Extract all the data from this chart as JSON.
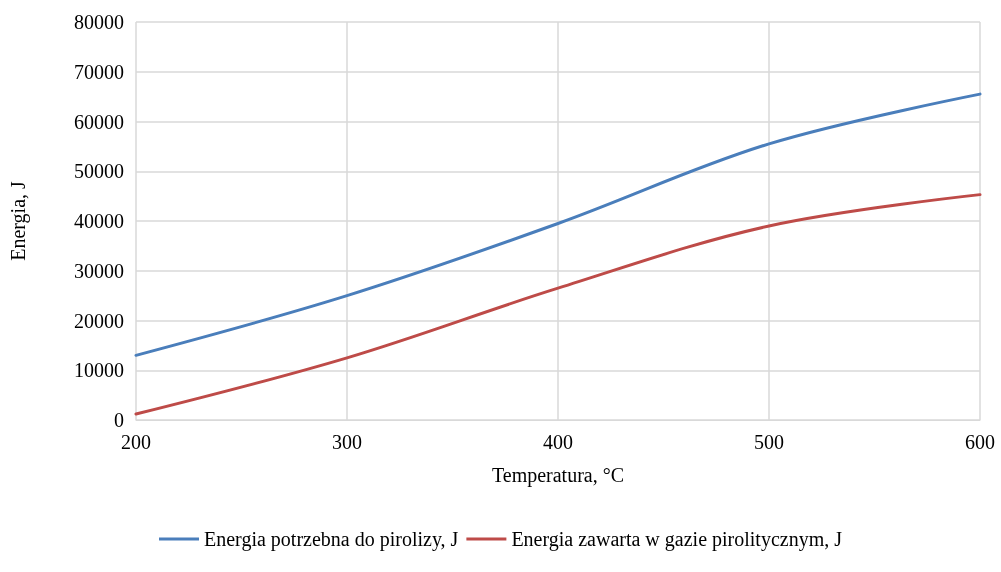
{
  "chart_data": {
    "type": "line",
    "xlabel": "Temperatura, °C",
    "ylabel": "Energia, J",
    "x": [
      200,
      300,
      400,
      500,
      600
    ],
    "series": [
      {
        "name": "Energia potrzebna do pirolizy, J",
        "color": "#4a7ebb",
        "values": [
          13000,
          25000,
          39500,
          55500,
          65500
        ]
      },
      {
        "name": "Energia zawarta w gazie pirolitycznym, J",
        "color": "#be4b48",
        "values": [
          1200,
          12500,
          26500,
          39000,
          45300
        ]
      }
    ],
    "xlim": [
      200,
      600
    ],
    "xticks": [
      200,
      300,
      400,
      500,
      600
    ],
    "ylim": [
      0,
      80000
    ],
    "yticks": [
      0,
      10000,
      20000,
      30000,
      40000,
      50000,
      60000,
      70000,
      80000
    ],
    "grid": true,
    "legend": "bottom",
    "marker": "none",
    "line_style": "solid"
  }
}
